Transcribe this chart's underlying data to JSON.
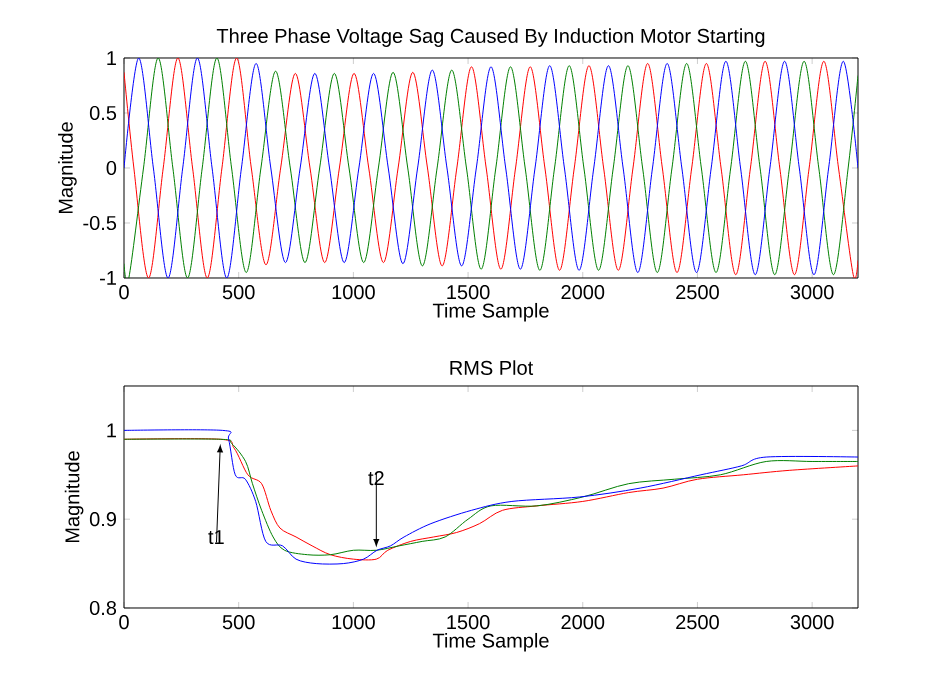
{
  "chart_data": [
    {
      "type": "line",
      "title": "Three Phase Voltage Sag Caused By Induction Motor Starting",
      "xlabel": "Time Sample",
      "ylabel": "Magnitude",
      "xlim": [
        0,
        3200
      ],
      "ylim": [
        -1,
        1
      ],
      "xticks": [
        0,
        500,
        1000,
        1500,
        2000,
        2500,
        3000
      ],
      "yticks": [
        -1,
        -0.5,
        0,
        0.5,
        1
      ],
      "series": [
        {
          "color": "#0000ff",
          "x": [
            0,
            64,
            128,
            192,
            256,
            320,
            384,
            448,
            512,
            576,
            640,
            704,
            768,
            832,
            896,
            960,
            1024,
            1088,
            1152,
            1216,
            1280,
            1344,
            1408,
            1472,
            1536,
            1600,
            1664,
            1728,
            1792,
            1856,
            1920,
            1984,
            2048,
            2112,
            2176,
            2240,
            2304,
            2368,
            2432,
            2496,
            2560,
            2624,
            2688,
            2752,
            2816,
            2880,
            2944,
            3008,
            3072,
            3136,
            3200
          ],
          "values": [
            0,
            1,
            0,
            -1,
            0,
            1,
            0,
            -1,
            0,
            0.95,
            0,
            -0.86,
            0,
            0.86,
            0,
            -0.86,
            0,
            0.86,
            0,
            -0.87,
            0,
            0.89,
            0,
            -0.89,
            0,
            0.92,
            0,
            -0.92,
            0,
            0.93,
            0,
            -0.93,
            0,
            0.93,
            0,
            -0.95,
            0,
            0.95,
            0,
            -0.95,
            0,
            0.97,
            0,
            -0.97,
            0,
            0.97,
            0,
            -0.97,
            0,
            0.97,
            0
          ]
        },
        {
          "color": "#008000",
          "x": [
            0,
            21,
            85,
            149,
            213,
            277,
            341,
            405,
            469,
            533,
            597,
            661,
            725,
            789,
            853,
            917,
            981,
            1045,
            1109,
            1173,
            1237,
            1301,
            1365,
            1429,
            1493,
            1557,
            1621,
            1685,
            1749,
            1813,
            1877,
            1941,
            2005,
            2069,
            2133,
            2197,
            2261,
            2325,
            2389,
            2453,
            2517,
            2581,
            2645,
            2709,
            2773,
            2837,
            2901,
            2965,
            3029,
            3093,
            3157,
            3200
          ],
          "values": [
            -0.87,
            -1,
            0,
            1,
            0,
            -1,
            0,
            1,
            0,
            -0.95,
            0,
            0.88,
            0,
            -0.86,
            0,
            0.86,
            0,
            -0.86,
            0,
            0.87,
            0,
            -0.89,
            0,
            0.89,
            0,
            -0.92,
            0,
            0.92,
            0,
            -0.93,
            0,
            0.93,
            0,
            -0.93,
            0,
            0.93,
            0,
            -0.95,
            0,
            0.95,
            0,
            -0.95,
            0,
            0.97,
            0,
            -0.97,
            0,
            0.97,
            0,
            -0.97,
            0,
            0.84
          ]
        },
        {
          "color": "#ff0000",
          "x": [
            0,
            43,
            107,
            171,
            235,
            299,
            363,
            427,
            491,
            555,
            619,
            683,
            747,
            811,
            875,
            939,
            1003,
            1067,
            1131,
            1195,
            1259,
            1323,
            1387,
            1451,
            1515,
            1579,
            1643,
            1707,
            1771,
            1835,
            1899,
            1963,
            2027,
            2091,
            2155,
            2219,
            2283,
            2347,
            2411,
            2475,
            2539,
            2603,
            2667,
            2731,
            2795,
            2859,
            2923,
            2987,
            3051,
            3115,
            3179,
            3200
          ],
          "values": [
            0.87,
            0,
            -1,
            0,
            1,
            0,
            -1,
            0,
            1,
            0,
            -0.88,
            0,
            0.86,
            0,
            -0.86,
            0,
            0.86,
            0,
            -0.86,
            0,
            0.87,
            0,
            -0.89,
            0,
            0.92,
            0,
            -0.92,
            0,
            0.92,
            0,
            -0.93,
            0,
            0.93,
            0,
            -0.93,
            0,
            0.95,
            0,
            -0.95,
            0,
            0.95,
            0,
            -0.97,
            0,
            0.97,
            0,
            -0.97,
            0,
            0.97,
            0,
            -0.97,
            -0.84
          ]
        }
      ]
    },
    {
      "type": "line",
      "title": "RMS Plot",
      "xlabel": "Time Sample",
      "ylabel": "Magnitude",
      "xlim": [
        0,
        3200
      ],
      "ylim": [
        0.8,
        1.05
      ],
      "xticks": [
        0,
        500,
        1000,
        1500,
        2000,
        2500,
        3000
      ],
      "yticks": [
        0.8,
        0.9,
        1
      ],
      "annotations": [
        {
          "text": "t1",
          "x": 420,
          "y": 0.985
        },
        {
          "text": "t2",
          "x": 1100,
          "y": 0.868
        }
      ],
      "series": [
        {
          "color": "#0000ff",
          "x": [
            0,
            430,
            456,
            485,
            529,
            574,
            618,
            691,
            750,
            838,
            956,
            1044,
            1103,
            1162,
            1221,
            1338,
            1515,
            1691,
            1985,
            2250,
            2515,
            2691,
            2800,
            3200
          ],
          "values": [
            1.0,
            1.0,
            0.99,
            0.95,
            0.945,
            0.92,
            0.875,
            0.87,
            0.855,
            0.85,
            0.85,
            0.855,
            0.865,
            0.87,
            0.88,
            0.895,
            0.91,
            0.92,
            0.925,
            0.935,
            0.95,
            0.96,
            0.97,
            0.97
          ]
        },
        {
          "color": "#008000",
          "x": [
            0,
            420,
            470,
            530,
            560,
            600,
            650,
            700,
            800,
            900,
            1000,
            1100,
            1200,
            1300,
            1400,
            1500,
            1600,
            1800,
            2000,
            2200,
            2400,
            2600,
            2800,
            3000,
            3200
          ],
          "values": [
            0.99,
            0.99,
            0.985,
            0.965,
            0.94,
            0.91,
            0.88,
            0.865,
            0.86,
            0.86,
            0.865,
            0.865,
            0.87,
            0.875,
            0.88,
            0.9,
            0.915,
            0.915,
            0.925,
            0.94,
            0.945,
            0.95,
            0.965,
            0.965,
            0.965
          ]
        },
        {
          "color": "#ff0000",
          "x": [
            0,
            420,
            480,
            540,
            600,
            640,
            680,
            750,
            820,
            900,
            1000,
            1100,
            1150,
            1250,
            1350,
            1450,
            1550,
            1650,
            1800,
            2000,
            2200,
            2350,
            2500,
            2700,
            2900,
            3200
          ],
          "values": [
            0.99,
            0.99,
            0.98,
            0.95,
            0.94,
            0.91,
            0.89,
            0.88,
            0.87,
            0.86,
            0.855,
            0.855,
            0.865,
            0.875,
            0.88,
            0.885,
            0.895,
            0.91,
            0.915,
            0.92,
            0.93,
            0.935,
            0.945,
            0.95,
            0.955,
            0.96
          ]
        }
      ]
    }
  ]
}
